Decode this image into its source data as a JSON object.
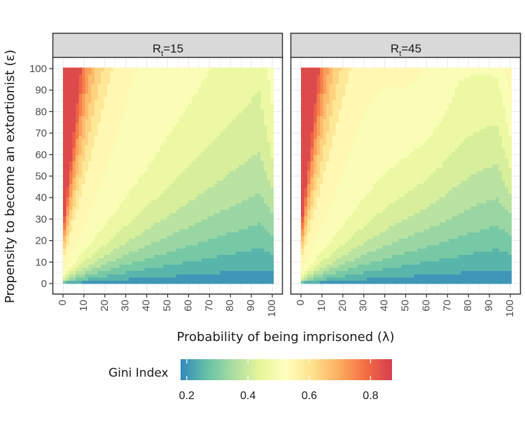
{
  "chart_data": {
    "type": "heatmap",
    "subtype": "filled-contour",
    "panels": [
      {
        "label_main": "R",
        "label_sub": "t",
        "label_value": "=15",
        "param_Rt": 15,
        "note": "Gini index surface over lambda (x) and epsilon (y)"
      },
      {
        "label_main": "R",
        "label_sub": "t",
        "label_value": "=45",
        "param_Rt": 45,
        "note": "Gini index surface over lambda (x) and epsilon (y)"
      }
    ],
    "xlabel": "Probability of being imprisoned (λ)",
    "ylabel": "Propensity to become an extortionist (ε)",
    "xlim": [
      0,
      100
    ],
    "ylim": [
      0,
      100
    ],
    "xticks": [
      "0",
      "10",
      "20",
      "30",
      "40",
      "50",
      "60",
      "70",
      "80",
      "90",
      "100"
    ],
    "yticks": [
      "0",
      "10",
      "20",
      "30",
      "40",
      "50",
      "60",
      "70",
      "80",
      "90",
      "100"
    ],
    "legend": {
      "title": "Gini Index",
      "placement": "bottom",
      "range": [
        0.18,
        0.87
      ],
      "breaks": [
        0.2,
        0.4,
        0.6,
        0.8
      ],
      "break_labels": [
        "0.2",
        "0.4",
        "0.6",
        "0.8"
      ],
      "palette": [
        "#3288bd",
        "#66c2a5",
        "#abdda4",
        "#e6f598",
        "#ffffbf",
        "#fee08b",
        "#fdae61",
        "#f46d43",
        "#d53e4f"
      ]
    },
    "grid": true,
    "panel_background": "#ffffff",
    "strip_background": "#d9d9d9"
  }
}
